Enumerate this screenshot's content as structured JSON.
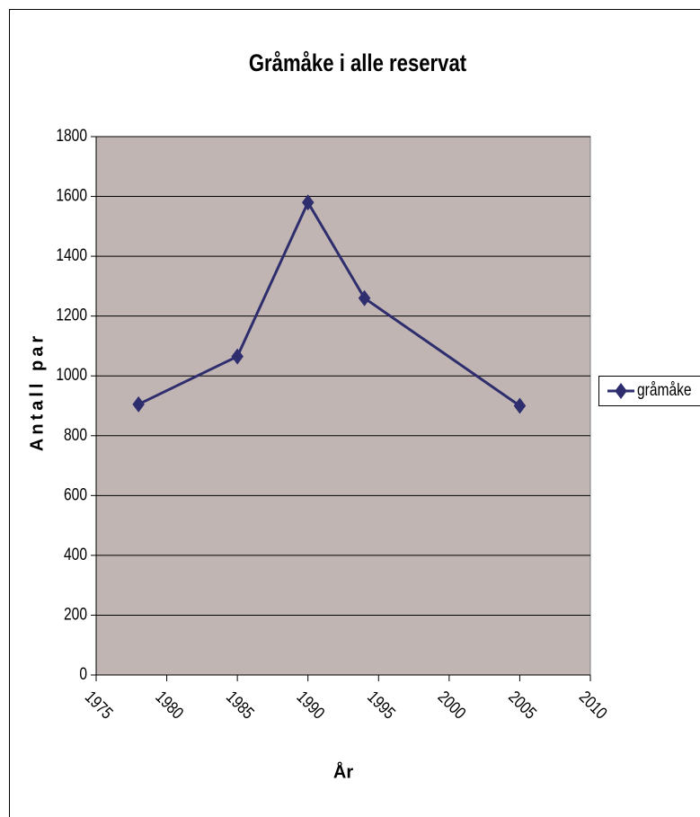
{
  "chart_data": {
    "type": "line",
    "title": "Gråmåke i alle reservat",
    "x_label": "År",
    "y_label": "Antall par",
    "x": [
      1978,
      1985,
      1990,
      1994,
      2005
    ],
    "series": [
      {
        "name": "gråmåke",
        "color": "#2e2e6e",
        "values": [
          905,
          1065,
          1580,
          1260,
          900
        ]
      }
    ],
    "xlim": [
      1975,
      2010
    ],
    "xticks": [
      1975,
      1980,
      1985,
      1990,
      1995,
      2000,
      2005,
      2010
    ],
    "ylim": [
      0,
      1800
    ],
    "yticks": [
      0,
      200,
      400,
      600,
      800,
      1000,
      1200,
      1400,
      1600,
      1800
    ],
    "grid": true,
    "legend": "right",
    "plot_background": "#c0b5b2"
  }
}
